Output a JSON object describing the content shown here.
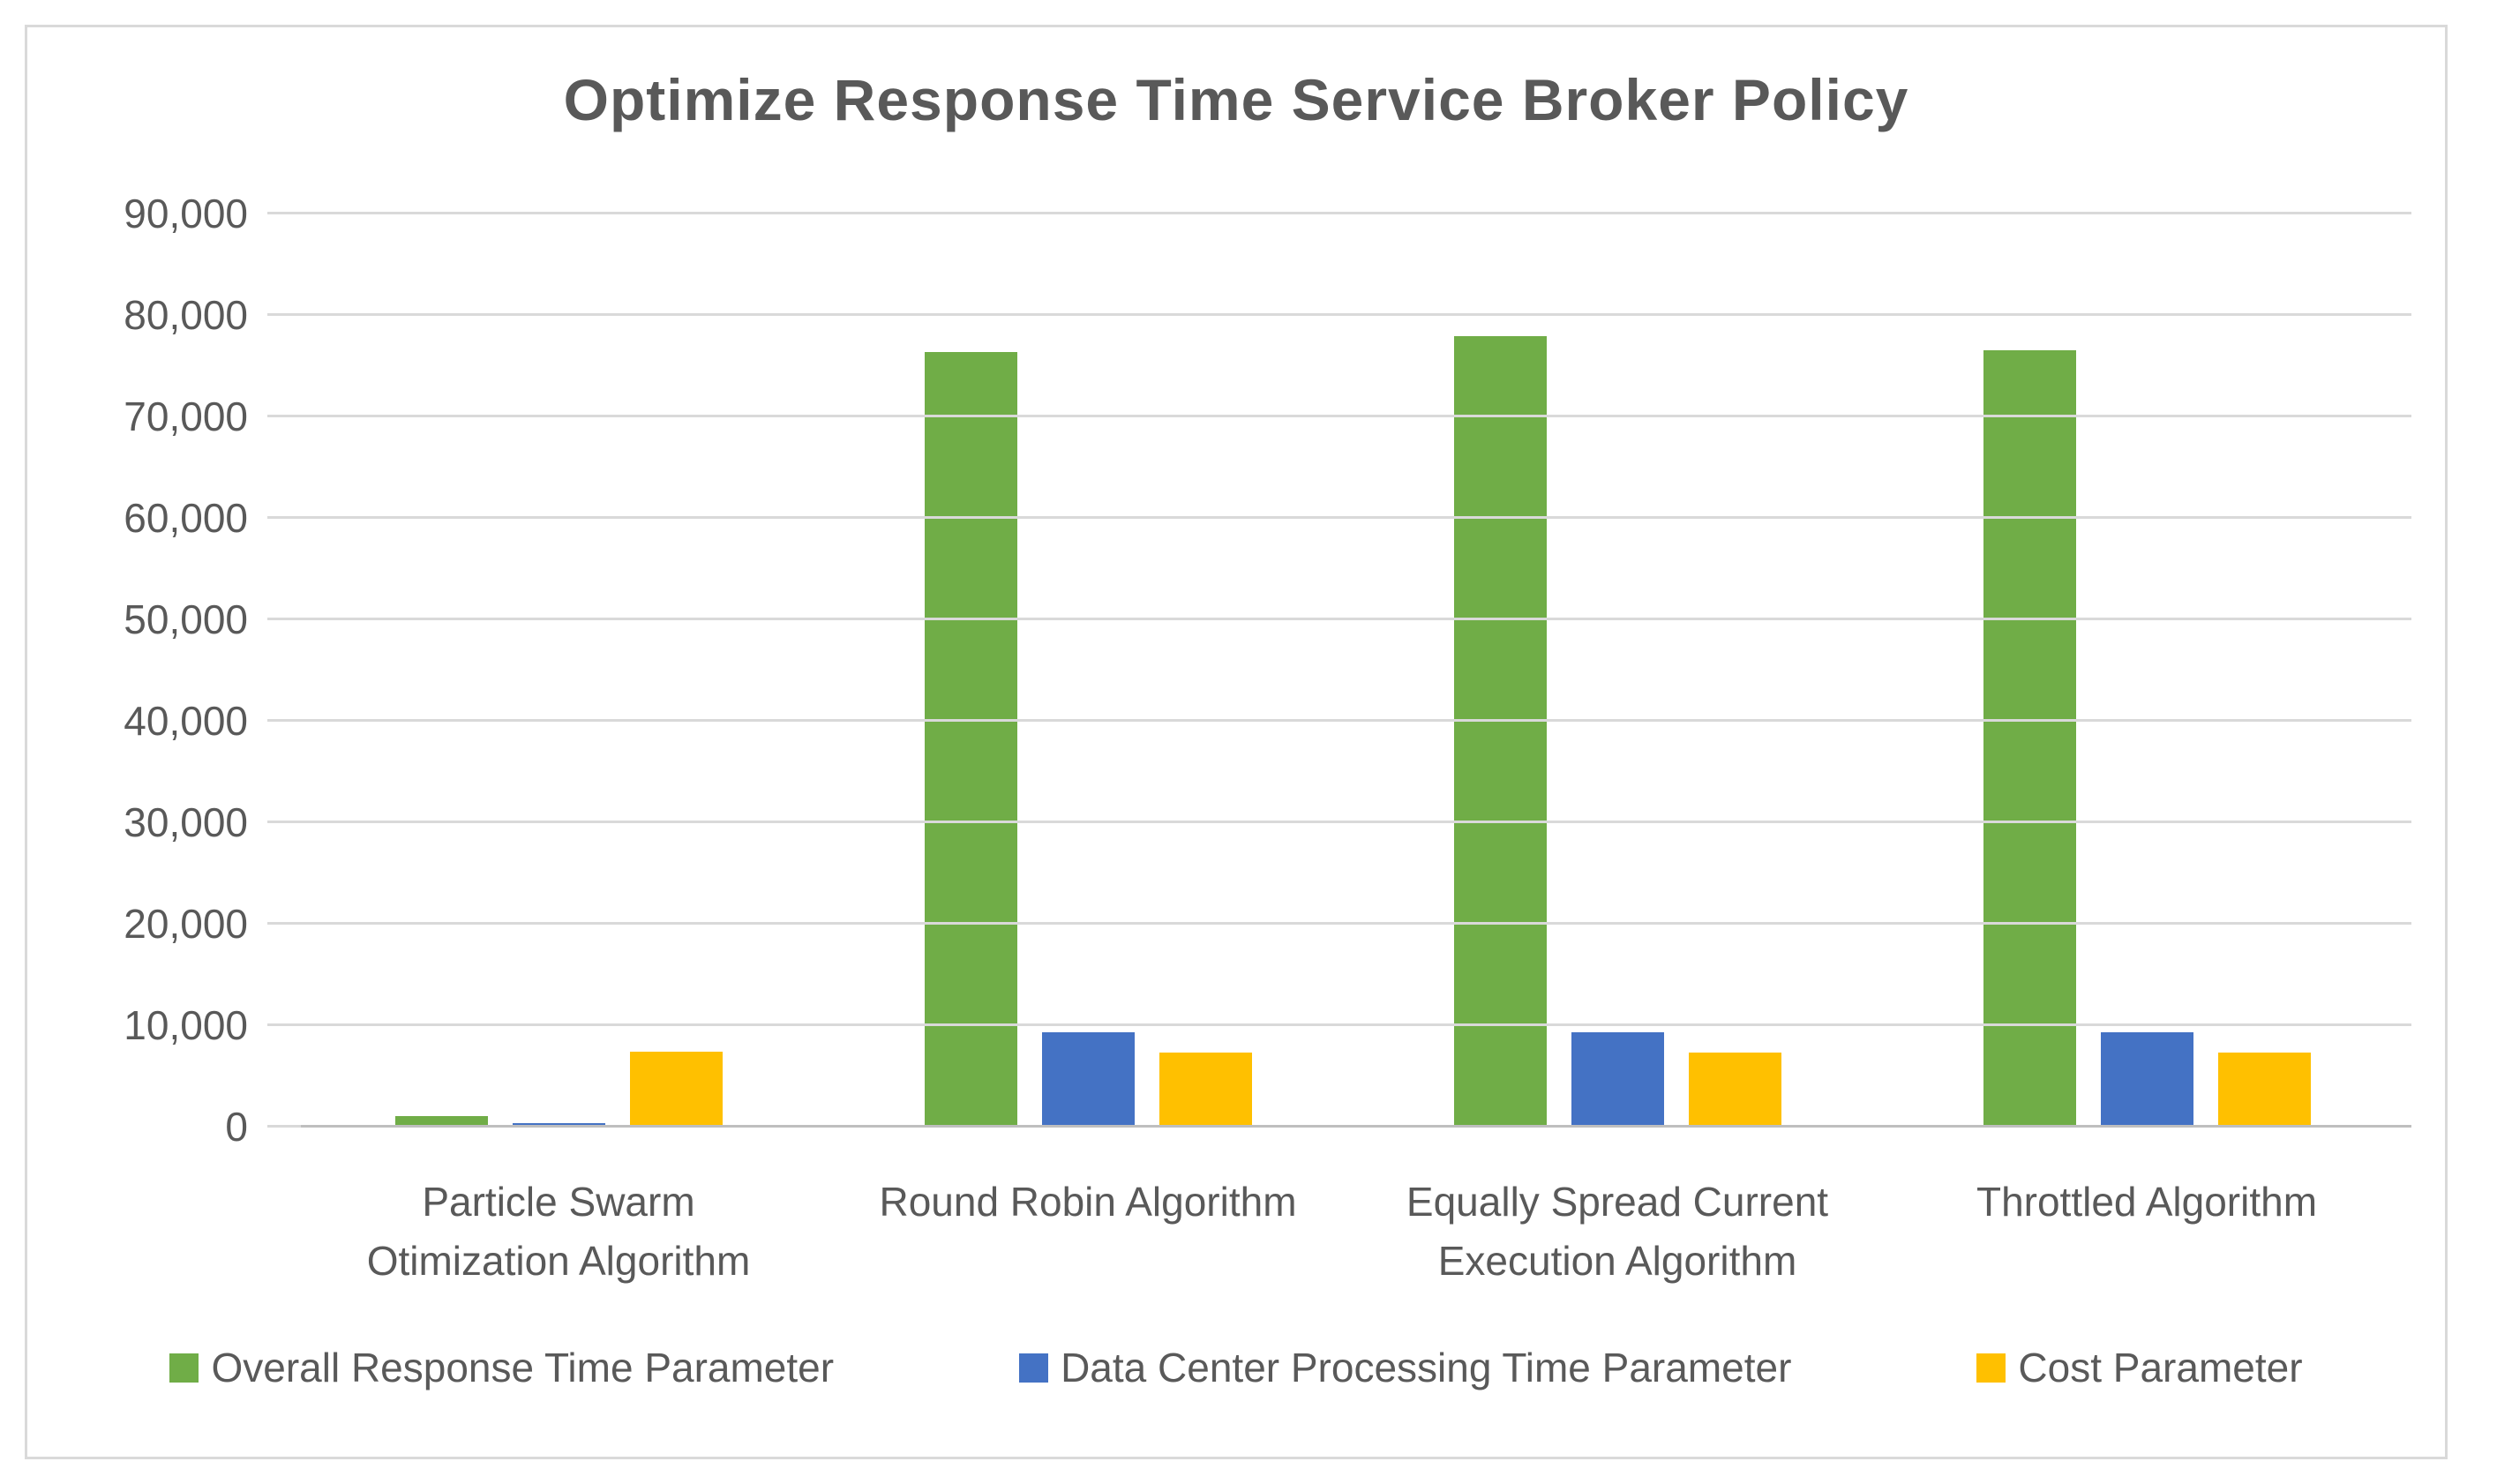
{
  "chart_data": {
    "type": "bar",
    "title": "Optimize Response Time Service Broker Policy",
    "categories": [
      "Particle Swarm Otimization Algorithm",
      "Round Robin Algorithm",
      "Equally Spread Current Execution Algorithm",
      "Throttled Algorithm"
    ],
    "series": [
      {
        "name": "Overall Response Time Parameter",
        "color": "#70AD47",
        "values": [
          1100,
          76400,
          78000,
          76600
        ]
      },
      {
        "name": "Data Center Processing Time Parameter",
        "color": "#4472C4",
        "values": [
          450,
          9400,
          9400,
          9400
        ]
      },
      {
        "name": "Cost Parameter",
        "color": "#FFC000",
        "values": [
          7500,
          7400,
          7400,
          7400
        ]
      }
    ],
    "ylim": [
      0,
      90000
    ],
    "ytick_step": 10000,
    "ytick_labels": [
      "0",
      "10,000",
      "20,000",
      "30,000",
      "40,000",
      "50,000",
      "60,000",
      "70,000",
      "80,000",
      "90,000"
    ],
    "grid": true,
    "legend_position": "bottom",
    "xlabel": "",
    "ylabel": ""
  },
  "styles": {
    "text_color": "#595959",
    "gridline_color": "#D9D9D9",
    "baseline_color": "#BFBFBF",
    "card_border_color": "#D9D9D9",
    "background_color": "#FFFFFF"
  }
}
